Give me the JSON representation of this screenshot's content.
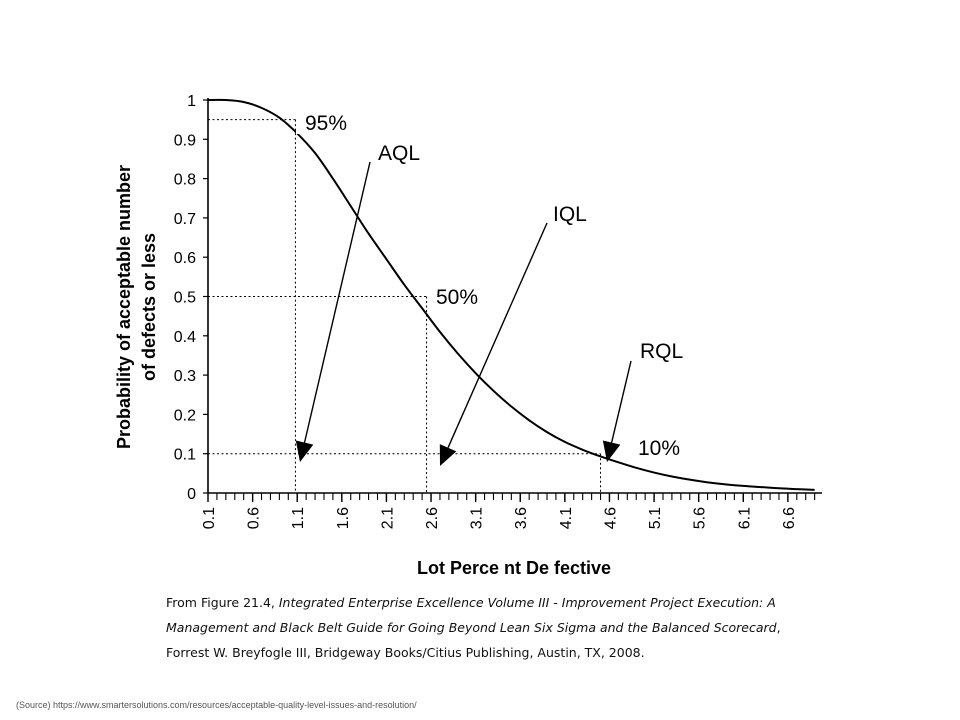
{
  "chart_data": {
    "type": "line",
    "title": "",
    "xlabel": "Lot Perce nt De fective",
    "ylabel": [
      "Probability of acceptable number",
      "of defects or less"
    ],
    "xlim": [
      0.1,
      6.96
    ],
    "ylim": [
      0,
      1
    ],
    "x_tick_labels": [
      "0.1",
      "0.6",
      "1.1",
      "1.6",
      "2.1",
      "2.6",
      "3.1",
      "3.6",
      "4.1",
      "4.6",
      "5.1",
      "5.6",
      "6.1",
      "6.6"
    ],
    "y_tick_labels": [
      "0",
      "0.1",
      "0.2",
      "0.3",
      "0.4",
      "0.5",
      "0.6",
      "0.7",
      "0.8",
      "0.9",
      "1"
    ],
    "grid": false,
    "series": [
      {
        "x": [
          0.1,
          0.3,
          0.5,
          0.7,
          0.9,
          1.1,
          1.3,
          1.5,
          1.7,
          1.9,
          2.1,
          2.3,
          2.5,
          2.7,
          2.9,
          3.1,
          3.3,
          3.5,
          3.7,
          3.9,
          4.1,
          4.3,
          4.5,
          4.7,
          4.9,
          5.1,
          5.3,
          5.5,
          5.7,
          5.9,
          6.1,
          6.3,
          6.5,
          6.7,
          6.9
        ],
        "values": [
          1.0,
          1.0,
          0.995,
          0.98,
          0.955,
          0.915,
          0.865,
          0.8,
          0.73,
          0.66,
          0.595,
          0.53,
          0.47,
          0.41,
          0.355,
          0.305,
          0.26,
          0.22,
          0.185,
          0.155,
          0.13,
          0.11,
          0.093,
          0.078,
          0.064,
          0.052,
          0.042,
          0.034,
          0.027,
          0.022,
          0.018,
          0.015,
          0.012,
          0.01,
          0.008
        ]
      }
    ],
    "reference_lines": [
      {
        "y": 0.95,
        "x": 1.08,
        "label": "95%"
      },
      {
        "y": 0.5,
        "x": 2.55,
        "label": "50%"
      },
      {
        "y": 0.1,
        "x": 4.5,
        "label": "10%"
      }
    ],
    "annotations": [
      {
        "label": "AQL",
        "target_x": 1.2
      },
      {
        "label": "IQL",
        "target_x": 2.72
      },
      {
        "label": "RQL",
        "target_x": 4.6
      }
    ]
  },
  "caption": {
    "prefix": "From Figure 21.4, ",
    "italic": "Integrated Enterprise Excellence Volume III - Improvement Project Execution: A Management and Black Belt Guide for Going Beyond Lean Six Sigma and the Balanced Scorecard",
    "suffix": ", Forrest W. Breyfogle III, Bridgeway Books/Citius Publishing, Austin, TX, 2008."
  },
  "source": "(Source) https://www.smartersolutions.com/resources/acceptable-quality-level-issues-and-resolution/"
}
